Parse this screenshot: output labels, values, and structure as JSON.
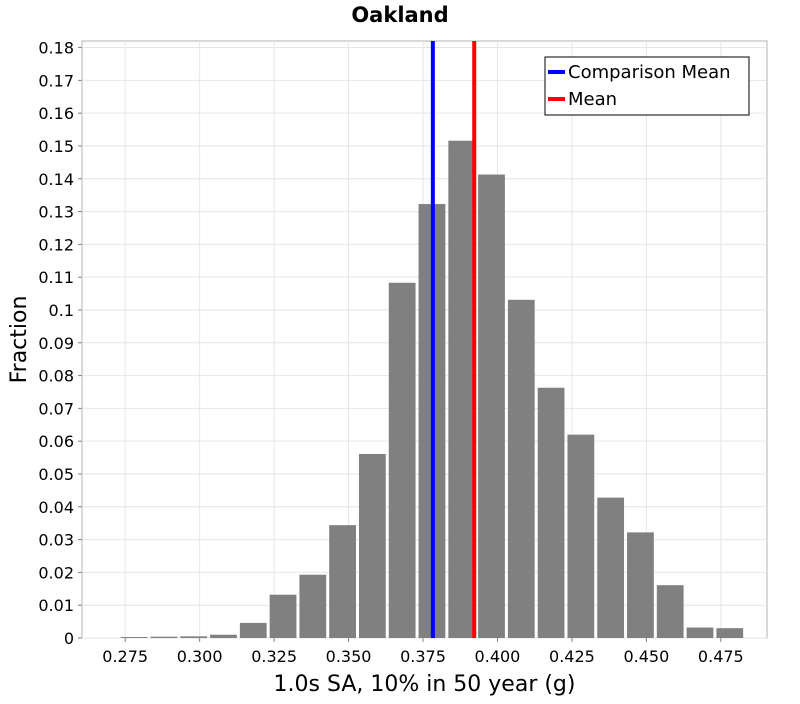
{
  "chart_data": {
    "type": "bar",
    "title": "Oakland",
    "xlabel": "1.0s SA, 10% in 50 year (g)",
    "ylabel": "Fraction",
    "xlim": [
      0.2605,
      0.4905
    ],
    "ylim": [
      0,
      0.182
    ],
    "grid": true,
    "legend_position": "top-right",
    "bin_width": 0.01,
    "x_ticks": [
      0.275,
      0.3,
      0.325,
      0.35,
      0.375,
      0.4,
      0.425,
      0.45,
      0.475
    ],
    "x_tick_labels": [
      "0.275",
      "0.300",
      "0.325",
      "0.350",
      "0.375",
      "0.400",
      "0.425",
      "0.450",
      "0.475"
    ],
    "y_ticks": [
      0,
      0.01,
      0.02,
      0.03,
      0.04,
      0.05,
      0.06,
      0.07,
      0.08,
      0.09,
      0.1,
      0.11,
      0.12,
      0.13,
      0.14,
      0.15,
      0.16,
      0.17,
      0.18
    ],
    "y_tick_labels": [
      "0",
      "0.01",
      "0.02",
      "0.03",
      "0.04",
      "0.05",
      "0.06",
      "0.07",
      "0.08",
      "0.09",
      "0.1",
      "0.11",
      "0.12",
      "0.13",
      "0.14",
      "0.15",
      "0.16",
      "0.17",
      "0.18"
    ],
    "bar_color": "#808080",
    "x": [
      0.278,
      0.288,
      0.298,
      0.308,
      0.318,
      0.328,
      0.338,
      0.348,
      0.358,
      0.368,
      0.378,
      0.388,
      0.398,
      0.408,
      0.418,
      0.428,
      0.438,
      0.448,
      0.458,
      0.468,
      0.478
    ],
    "values": [
      0.0003,
      0.0004,
      0.0005,
      0.001,
      0.0046,
      0.0132,
      0.0193,
      0.0344,
      0.0561,
      0.1083,
      0.1323,
      0.1516,
      0.1413,
      0.1031,
      0.0763,
      0.062,
      0.0428,
      0.0322,
      0.0161,
      0.0032,
      0.003
    ],
    "vlines": [
      {
        "name": "Comparison Mean",
        "x": 0.3783,
        "color": "#0000ff"
      },
      {
        "name": "Mean",
        "x": 0.3922,
        "color": "#ff0000"
      }
    ]
  }
}
